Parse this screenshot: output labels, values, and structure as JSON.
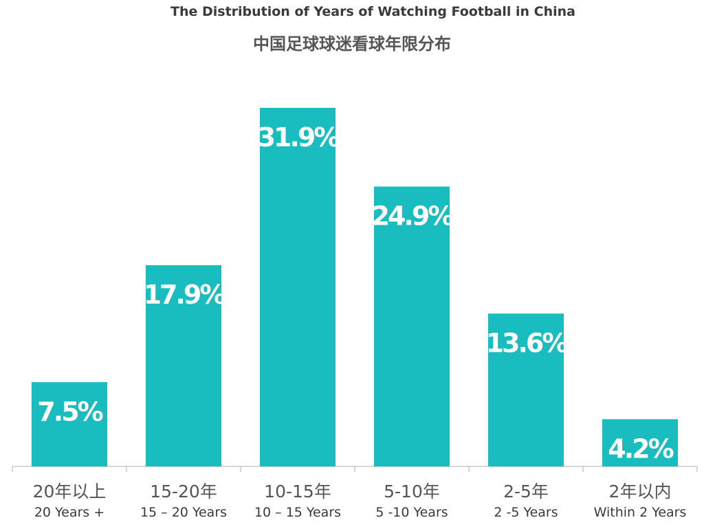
{
  "colors": {
    "bar": "#19BDBF",
    "axis": "#c8c8c8"
  },
  "chart_data": {
    "type": "bar",
    "title": "The Distribution of Years of Watching Football in China",
    "subtitle": "中国足球球迷看球年限分布",
    "categories": [
      "20年以上",
      "15-20年",
      "10-15年",
      "5-10年",
      "2-5年",
      "2年以内"
    ],
    "categories_en": [
      "20 Years +",
      "15 – 20 Years",
      "10 – 15 Years",
      "5 -10 Years",
      "2 -5 Years",
      "Within 2 Years"
    ],
    "values": [
      7.5,
      17.9,
      31.9,
      24.9,
      13.6,
      4.2
    ],
    "data_labels": [
      "7.5%",
      "17.9%",
      "31.9%",
      "24.9%",
      "13.6%",
      "4.2%"
    ],
    "unit": "%",
    "ylim": [
      0,
      31.9
    ],
    "grid": false,
    "legend": "none"
  }
}
